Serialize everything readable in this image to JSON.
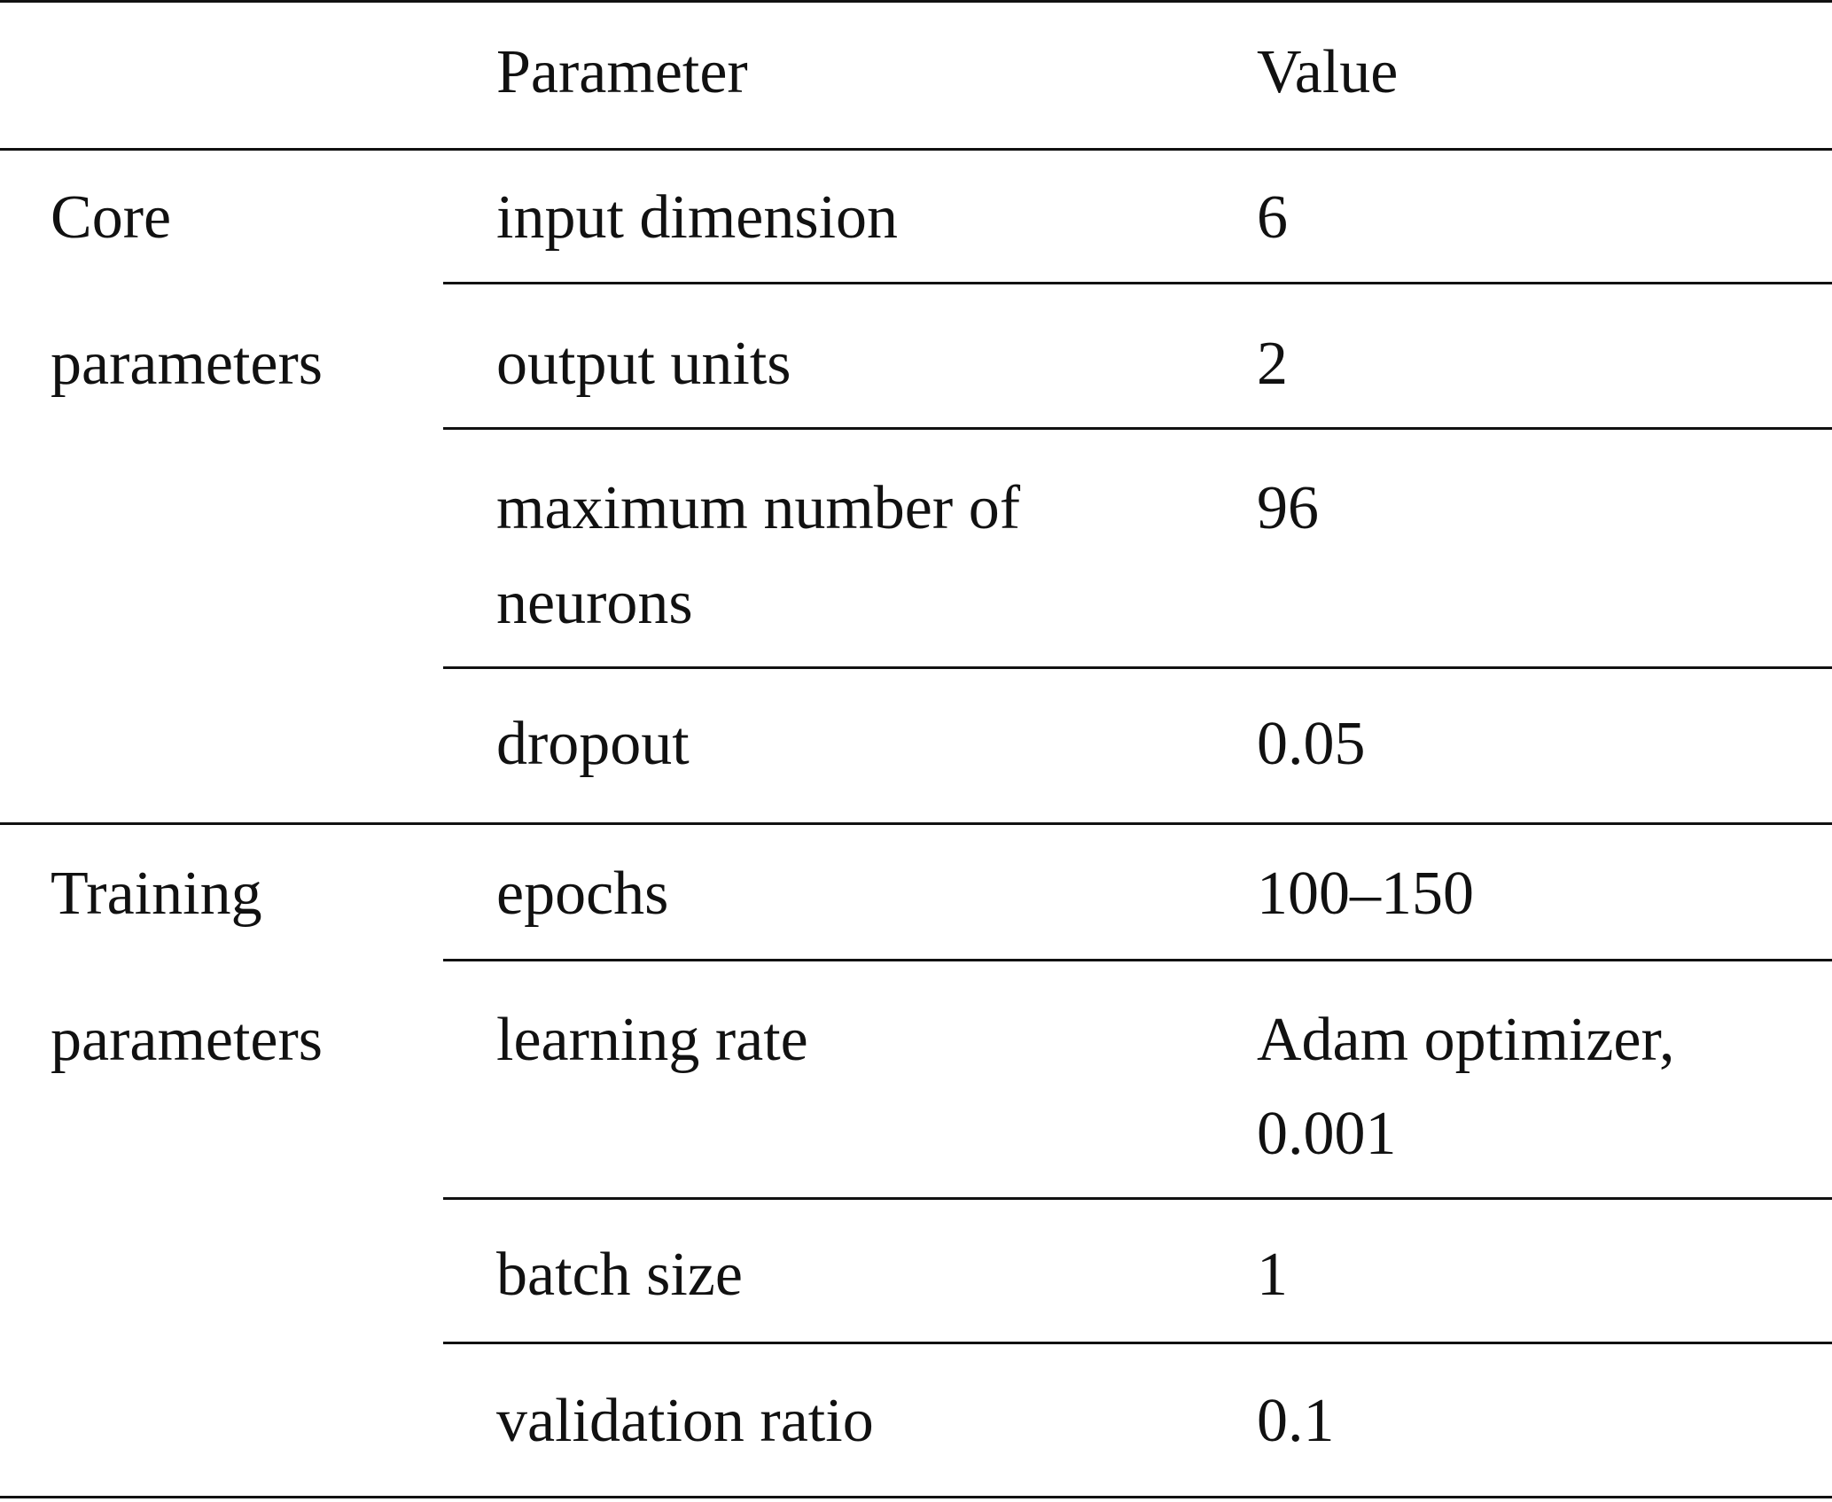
{
  "header": {
    "group": "",
    "parameter": "Parameter",
    "value": "Value"
  },
  "groups": [
    {
      "label_line1": "Core",
      "label_line2": "parameters",
      "rows": [
        {
          "parameter_line1": "input dimension",
          "parameter_line2": "",
          "value_line1": "6",
          "value_line2": ""
        },
        {
          "parameter_line1": "output units",
          "parameter_line2": "",
          "value_line1": "2",
          "value_line2": ""
        },
        {
          "parameter_line1": "maximum number of",
          "parameter_line2": "neurons",
          "value_line1": "96",
          "value_line2": ""
        },
        {
          "parameter_line1": "dropout",
          "parameter_line2": "",
          "value_line1": "0.05",
          "value_line2": ""
        }
      ]
    },
    {
      "label_line1": "Training",
      "label_line2": "parameters",
      "rows": [
        {
          "parameter_line1": "epochs",
          "parameter_line2": "",
          "value_line1": "100–150",
          "value_line2": ""
        },
        {
          "parameter_line1": "learning rate",
          "parameter_line2": "",
          "value_line1": "Adam optimizer,",
          "value_line2": "0.001"
        },
        {
          "parameter_line1": "batch size",
          "parameter_line2": "",
          "value_line1": "1",
          "value_line2": ""
        },
        {
          "parameter_line1": "validation ratio",
          "parameter_line2": "",
          "value_line1": "0.1",
          "value_line2": ""
        }
      ]
    }
  ]
}
